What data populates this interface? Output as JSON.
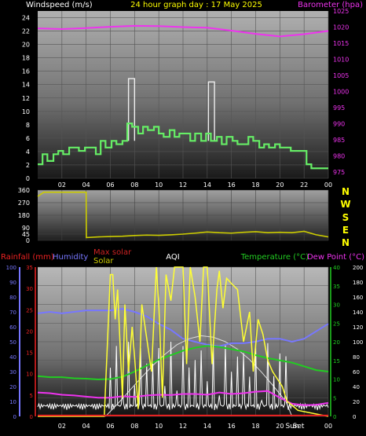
{
  "title": "24 hour graph day : 17 May 2025",
  "colors": {
    "background": "#000000",
    "title": "#ffff00",
    "wind_speed": "#66ee66",
    "wind_gust": "#eeeeee",
    "pressure": "#ee33ee",
    "direction": "#cccc00",
    "rainfall": "#ee2222",
    "humidity": "#7777ff",
    "temperature": "#22cc22",
    "dew_point": "#ee33ee",
    "max_solar": "#cc2222",
    "solar": "#ffff33",
    "solar_max_curve": "#dddddd",
    "aqi": "#ffffff",
    "axis_text": "#ffffff",
    "secondary_axis_text": "#ee33ee"
  },
  "panels": {
    "wind": {
      "left_label": "Windspeed (m/s)",
      "right_label": "Barometer (hpa)"
    },
    "direction": {
      "right_labels": [
        "N",
        "W",
        "S",
        "E",
        "N"
      ]
    },
    "lower": {
      "labels": {
        "rainfall": "Rainfall (mm)",
        "humidity": "Humidity",
        "max_solar": "Max solar",
        "solar": "Solar",
        "aqi": "AQI",
        "temperature": "Temperature (°C)",
        "dew_point": "Dew Point (°C)"
      },
      "time_label_a": "Sun",
      "time_label_b": "Set"
    }
  },
  "chart_data": [
    {
      "type": "line",
      "xlabel": "",
      "x_ticks": [
        "02",
        "04",
        "06",
        "08",
        "10",
        "12",
        "14",
        "16",
        "18",
        "20",
        "22",
        "00"
      ],
      "x_range": [
        0,
        24
      ],
      "y_left": {
        "label": "Windspeed (m/s)",
        "range": [
          0,
          25
        ],
        "ticks": [
          "0",
          "2",
          "4",
          "6",
          "8",
          "10",
          "12",
          "14",
          "16",
          "18",
          "20",
          "22",
          "24"
        ]
      },
      "y_right": {
        "label": "Barometer (hpa)",
        "range": [
          973,
          1025
        ],
        "ticks": [
          "975",
          "980",
          "985",
          "990",
          "995",
          "1000",
          "1005",
          "1010",
          "1015",
          "1020",
          "1025"
        ]
      },
      "series": [
        {
          "name": "Windspeed",
          "step": true,
          "axis": "left",
          "x": [
            0.0,
            0.4,
            0.8,
            1.3,
            1.7,
            2.1,
            2.6,
            3.0,
            3.4,
            3.9,
            4.3,
            4.8,
            5.2,
            5.6,
            6.1,
            6.5,
            7.0,
            7.4,
            7.8,
            8.3,
            8.7,
            9.1,
            9.6,
            10.0,
            10.4,
            10.9,
            11.3,
            11.7,
            12.2,
            12.6,
            13.0,
            13.5,
            13.9,
            14.3,
            14.8,
            15.2,
            15.6,
            16.1,
            16.5,
            16.9,
            17.4,
            17.8,
            18.3,
            18.7,
            19.1,
            19.6,
            20.0,
            20.4,
            20.9,
            21.3,
            21.7,
            22.2,
            22.6,
            23.0,
            23.5,
            24.0
          ],
          "y": [
            2.1,
            3.6,
            2.6,
            3.6,
            4.1,
            3.6,
            4.6,
            4.6,
            4.1,
            4.6,
            4.6,
            3.6,
            5.6,
            4.6,
            5.6,
            5.1,
            5.6,
            8.2,
            7.7,
            6.7,
            7.7,
            7.2,
            7.7,
            6.7,
            6.2,
            7.2,
            6.2,
            6.7,
            6.7,
            5.6,
            6.7,
            5.6,
            6.7,
            5.6,
            6.2,
            5.1,
            6.2,
            5.6,
            5.1,
            5.1,
            6.2,
            5.6,
            4.6,
            5.1,
            4.6,
            5.1,
            4.6,
            4.6,
            4.1,
            4.1,
            4.1,
            2.1,
            1.5,
            1.5,
            1.5,
            1.5
          ]
        },
        {
          "name": "Gust",
          "step": true,
          "axis": "left",
          "x": [
            7.5,
            7.5,
            8.0,
            8.0,
            14.1,
            14.1,
            14.6,
            14.6
          ],
          "y": [
            5.6,
            14.9,
            14.9,
            5.6,
            5.6,
            14.4,
            14.4,
            5.6
          ]
        },
        {
          "name": "Barometer",
          "axis": "right",
          "x": [
            0,
            2,
            4,
            6,
            8,
            10,
            12,
            14,
            16,
            18,
            20,
            22,
            24
          ],
          "y": [
            1019.6,
            1019.4,
            1019.7,
            1020.1,
            1020.4,
            1020.3,
            1020.0,
            1019.8,
            1018.9,
            1017.9,
            1017.1,
            1017.8,
            1018.8
          ]
        }
      ]
    },
    {
      "type": "line",
      "x_ticks": [
        "02",
        "04",
        "06",
        "08",
        "10",
        "12",
        "14",
        "16",
        "18",
        "20",
        "22",
        "00"
      ],
      "x_range": [
        0,
        24
      ],
      "y_left": {
        "range": [
          0,
          360
        ],
        "ticks": [
          "0",
          "45",
          "90",
          "180",
          "270",
          "360"
        ]
      },
      "series": [
        {
          "name": "Wind direction",
          "x": [
            0,
            0.5,
            4.0,
            4.02,
            5,
            6,
            7,
            8,
            9,
            10,
            11,
            12,
            13,
            14,
            15,
            16,
            17,
            18,
            19,
            20,
            21,
            22,
            23,
            24
          ],
          "y": [
            315,
            345,
            345,
            20,
            25,
            28,
            30,
            35,
            38,
            36,
            40,
            45,
            52,
            60,
            55,
            52,
            58,
            62,
            55,
            58,
            55,
            65,
            40,
            25
          ]
        }
      ]
    },
    {
      "type": "line",
      "x_ticks": [
        "02",
        "04",
        "06",
        "08",
        "10",
        "12",
        "14",
        "16",
        "18",
        "20",
        "22",
        "00"
      ],
      "x_range": [
        0,
        24
      ],
      "y_axes": [
        {
          "name": "Rainfall (mm)",
          "range": [
            0,
            35
          ],
          "ticks": [
            "0",
            "5",
            "10",
            "15",
            "20",
            "25",
            "30",
            "35"
          ]
        },
        {
          "name": "Humidity",
          "range": [
            0,
            100
          ],
          "ticks": [
            "0",
            "10",
            "20",
            "30",
            "40",
            "50",
            "60",
            "70",
            "80",
            "90",
            "100"
          ]
        },
        {
          "name": "Temperature (°C)",
          "range": [
            0,
            40
          ],
          "ticks": [
            "0",
            "5",
            "10",
            "15",
            "20",
            "25",
            "30",
            "35",
            "40"
          ]
        },
        {
          "name": "Solar",
          "range": [
            0,
            200
          ],
          "ticks": [
            "0",
            "20",
            "40",
            "60",
            "80",
            "100",
            "120",
            "140",
            "160",
            "180",
            "200"
          ]
        }
      ],
      "series": [
        {
          "name": "Humidity",
          "axis": "Humidity",
          "x": [
            0,
            1,
            2,
            3,
            4,
            5,
            6,
            7,
            8,
            9,
            10,
            11,
            12,
            13,
            14,
            15,
            16,
            17,
            18,
            19,
            20,
            21,
            22,
            23,
            24
          ],
          "y": [
            69,
            70,
            69,
            70,
            71,
            71,
            71,
            72,
            70,
            67,
            62,
            58,
            52,
            50,
            48,
            47,
            49,
            49,
            50,
            52,
            52,
            50,
            52,
            57,
            62
          ]
        },
        {
          "name": "Temperature",
          "axis": "Temperature (°C)",
          "x": [
            0,
            1,
            2,
            3,
            4,
            5,
            6,
            7,
            8,
            9,
            10,
            11,
            12,
            13,
            14,
            15,
            16,
            17,
            18,
            19,
            20,
            21,
            22,
            23,
            24
          ],
          "y": [
            10.8,
            10.5,
            10.5,
            10.2,
            10.1,
            9.9,
            10.0,
            10.6,
            12.0,
            13.6,
            15.2,
            16.4,
            17.6,
            18.4,
            18.9,
            18.6,
            18.0,
            17.4,
            16.4,
            15.6,
            15.0,
            14.4,
            13.4,
            12.4,
            12.0
          ]
        },
        {
          "name": "Dew Point",
          "axis": "Temperature (°C)",
          "x": [
            0,
            1,
            2,
            3,
            4,
            5,
            6,
            7,
            8,
            9,
            10,
            11,
            12,
            13,
            14,
            15,
            16,
            17,
            18,
            19,
            20,
            21,
            22,
            23,
            24
          ],
          "y": [
            6.4,
            6.2,
            5.8,
            5.6,
            5.3,
            5.0,
            5.0,
            5.4,
            5.2,
            5.6,
            5.8,
            5.7,
            6.0,
            6.0,
            5.8,
            6.4,
            6.0,
            6.2,
            6.6,
            6.8,
            5.0,
            3.4,
            3.0,
            3.1,
            3.6
          ]
        },
        {
          "name": "Max solar",
          "axis": "Solar",
          "x": [
            5.6,
            6.5,
            7.5,
            8.5,
            9.5,
            10.5,
            11.5,
            12.5,
            13.5,
            14.5,
            15.5,
            16.5,
            17.5,
            18.5,
            19.5,
            20.5,
            21.0
          ],
          "y": [
            0,
            15,
            33,
            51,
            68,
            83,
            96,
            104,
            108,
            106,
            100,
            90,
            76,
            59,
            40,
            20,
            0
          ]
        },
        {
          "name": "Solar",
          "axis": "Solar",
          "x": [
            0,
            5.5,
            6.0,
            6.2,
            6.4,
            6.6,
            7.0,
            7.2,
            7.5,
            7.8,
            8.0,
            8.3,
            8.6,
            9.0,
            9.4,
            9.8,
            10.0,
            10.3,
            10.6,
            11.0,
            11.3,
            11.6,
            12.0,
            12.3,
            12.6,
            13.0,
            13.4,
            13.7,
            14.0,
            14.4,
            14.8,
            15.0,
            15.3,
            15.6,
            16.0,
            16.5,
            17.0,
            17.5,
            17.8,
            18.2,
            18.6,
            19.0,
            19.4,
            19.8,
            20.2,
            20.6,
            21.0,
            21.5,
            24.0
          ],
          "y": [
            0,
            0,
            190,
            190,
            130,
            170,
            25,
            150,
            60,
            120,
            80,
            10,
            150,
            105,
            60,
            200,
            150,
            25,
            190,
            155,
            200,
            200,
            200,
            70,
            200,
            160,
            100,
            200,
            200,
            70,
            170,
            195,
            145,
            185,
            178,
            170,
            100,
            140,
            60,
            130,
            110,
            75,
            60,
            50,
            40,
            20,
            15,
            8,
            0
          ]
        },
        {
          "name": "Rainfall",
          "axis": "Rainfall (mm)",
          "x": [
            0,
            24
          ],
          "y": [
            0.2,
            0.2
          ]
        }
      ],
      "aqi_note": "AQI shown as spiky white trace"
    }
  ]
}
